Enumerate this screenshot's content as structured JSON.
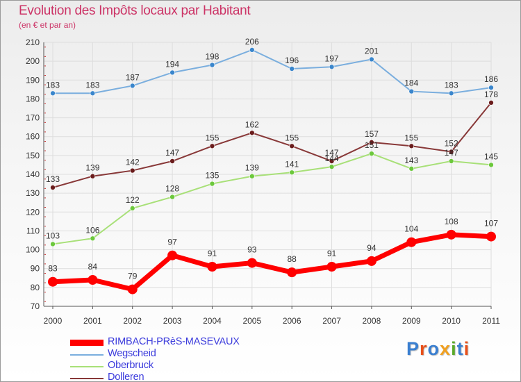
{
  "header": {
    "title": "Evolution des Impôts locaux par Habitant",
    "subtitle": "(en € et par an)"
  },
  "brand": {
    "logo_text": "Proxiti",
    "letter_colors": [
      "#3a7fd0",
      "#e8501a",
      "#3a7fd0",
      "#f0a020",
      "#5aaa2a",
      "#3a7fd0",
      "#e8501a"
    ]
  },
  "chart_data": {
    "type": "line",
    "categories": [
      "2000",
      "2001",
      "2002",
      "2003",
      "2004",
      "2005",
      "2006",
      "2007",
      "2008",
      "2009",
      "2010",
      "2011"
    ],
    "ylim": [
      70,
      210
    ],
    "yticks": [
      70,
      80,
      90,
      100,
      110,
      120,
      130,
      140,
      150,
      160,
      170,
      180,
      190,
      200,
      210
    ],
    "grid": true,
    "legend_position": "bottom-left",
    "series": [
      {
        "name": "RIMBACH-PRèS-MASEVAUX",
        "color": "#ff0000",
        "emphasis": true,
        "values": [
          83,
          84,
          79,
          97,
          91,
          93,
          88,
          91,
          94,
          104,
          108,
          107
        ]
      },
      {
        "name": "Wegscheid",
        "color": "#7aaede",
        "marker": "#3a86cc",
        "values": [
          183,
          183,
          187,
          194,
          198,
          206,
          196,
          197,
          201,
          184,
          183,
          186
        ]
      },
      {
        "name": "Oberbruck",
        "color": "#a8e078",
        "marker": "#6cc83c",
        "values": [
          103,
          106,
          122,
          128,
          135,
          139,
          141,
          144,
          151,
          143,
          147,
          145
        ]
      },
      {
        "name": "Dolleren",
        "color": "#883838",
        "marker": "#6a1c1c",
        "values": [
          133,
          139,
          142,
          147,
          155,
          162,
          155,
          147,
          157,
          155,
          152,
          178
        ]
      }
    ]
  }
}
